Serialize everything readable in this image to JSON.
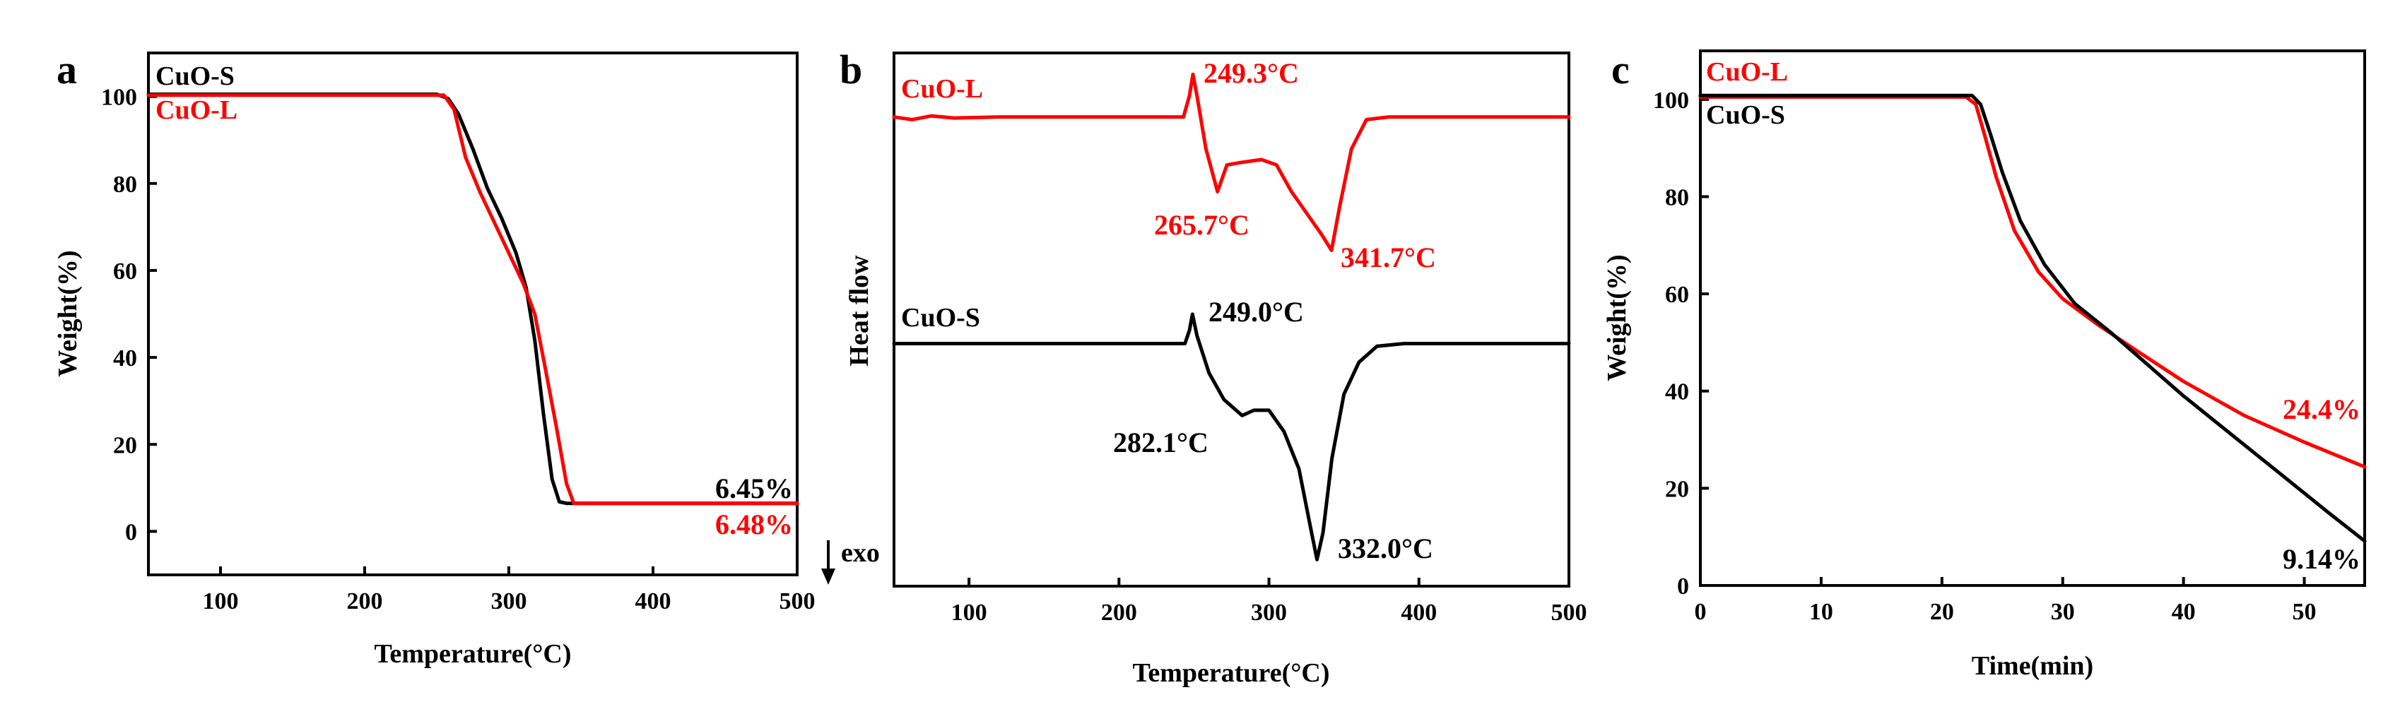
{
  "colors": {
    "CuO-S": "#000000",
    "CuO-L": "#ff0000"
  },
  "chart_data": [
    {
      "panel": "a",
      "type": "line",
      "xlabel": "Temperature(°C)",
      "ylabel": "Weight(%)",
      "xlim": [
        50,
        500
      ],
      "ylim": [
        -10,
        110
      ],
      "xticks": [
        100,
        200,
        300,
        400,
        500
      ],
      "yticks": [
        0,
        20,
        40,
        60,
        80,
        100
      ],
      "legend": [
        "CuO-S",
        "CuO-L"
      ],
      "series": [
        {
          "name": "CuO-S",
          "x": [
            50,
            250,
            258,
            265,
            275,
            285,
            295,
            305,
            312,
            318,
            324,
            330,
            335,
            340,
            345,
            500
          ],
          "y": [
            100.5,
            100.5,
            99.5,
            96,
            88,
            79,
            72,
            64,
            56,
            44,
            27,
            12,
            6.8,
            6.45,
            6.45,
            6.45
          ]
        },
        {
          "name": "CuO-L",
          "x": [
            50,
            255,
            262,
            270,
            280,
            290,
            300,
            310,
            318,
            325,
            333,
            340,
            345,
            350,
            500
          ],
          "y": [
            100.3,
            100.3,
            97,
            86,
            78,
            71,
            64,
            57,
            50,
            38,
            24,
            11,
            6.48,
            6.48,
            6.48
          ]
        }
      ],
      "annotations": [
        {
          "text": "6.45%",
          "series": "CuO-S",
          "x": 500,
          "y": 6.45
        },
        {
          "text": "6.48%",
          "series": "CuO-L",
          "x": 500,
          "y": 6.48
        }
      ]
    },
    {
      "panel": "b",
      "type": "line",
      "xlabel": "Temperature(°C)",
      "ylabel": "Heat flow",
      "direction_label": "exo",
      "xlim": [
        50,
        500
      ],
      "ylim": [
        0,
        100
      ],
      "xticks": [
        100,
        200,
        300,
        400,
        500
      ],
      "series": [
        {
          "name": "CuO-L",
          "x": [
            50,
            62,
            75,
            90,
            120,
            243,
            247,
            249.3,
            252,
            258,
            265.7,
            272,
            282,
            295,
            305,
            315,
            325,
            335,
            341.7,
            347,
            355,
            365,
            380,
            420,
            500
          ],
          "y": [
            88,
            87.5,
            88.2,
            87.8,
            88,
            88,
            92,
            96,
            92,
            82,
            74,
            79,
            79.5,
            80,
            79,
            74,
            70,
            66,
            63,
            71,
            82,
            87.5,
            88,
            88,
            88
          ]
        },
        {
          "name": "CuO-S",
          "x": [
            50,
            100,
            200,
            244,
            247,
            249,
            252,
            260,
            270,
            282.1,
            290,
            300,
            310,
            320,
            327,
            332,
            336,
            342,
            350,
            360,
            372,
            390,
            430,
            500
          ],
          "y": [
            45.5,
            45.5,
            45.5,
            45.5,
            48,
            51,
            47,
            40,
            35,
            32,
            33,
            33,
            29,
            22,
            12,
            5,
            10,
            24,
            36,
            42,
            45,
            45.5,
            45.5,
            45.5
          ]
        }
      ],
      "annotations": [
        {
          "text": "249.3°C",
          "series": "CuO-L",
          "x": 249.3,
          "y": 96
        },
        {
          "text": "265.7°C",
          "series": "CuO-L",
          "x": 265.7,
          "y": 74
        },
        {
          "text": "341.7°C",
          "series": "CuO-L",
          "x": 341.7,
          "y": 63
        },
        {
          "text": "249.0°C",
          "series": "CuO-S",
          "x": 249,
          "y": 51
        },
        {
          "text": "282.1°C",
          "series": "CuO-S",
          "x": 282.1,
          "y": 32
        },
        {
          "text": "332.0°C",
          "series": "CuO-S",
          "x": 332,
          "y": 5
        }
      ]
    },
    {
      "panel": "c",
      "type": "line",
      "xlabel": "Time(min)",
      "ylabel": "Weight(%)",
      "xlim": [
        0,
        55
      ],
      "ylim": [
        0,
        110
      ],
      "xticks": [
        0,
        10,
        20,
        30,
        40,
        50
      ],
      "yticks": [
        0,
        20,
        40,
        60,
        80,
        100
      ],
      "legend": [
        "CuO-L",
        "CuO-S"
      ],
      "series": [
        {
          "name": "CuO-L",
          "x": [
            0,
            22,
            22.8,
            23.5,
            24.5,
            26,
            28,
            30,
            33,
            36,
            40,
            45,
            50,
            55
          ],
          "y": [
            100.5,
            100.5,
            99,
            93,
            84,
            73,
            64.5,
            59,
            53.5,
            48.5,
            42,
            35,
            29.5,
            24.4
          ]
        },
        {
          "name": "CuO-S",
          "x": [
            0,
            22.5,
            23.2,
            24,
            25,
            26.5,
            28.5,
            31,
            34,
            37,
            40,
            44,
            48,
            52,
            55
          ],
          "y": [
            100.8,
            100.8,
            99,
            93,
            85,
            75,
            66,
            58,
            52,
            45.5,
            39,
            31,
            23,
            15,
            9.14
          ]
        }
      ],
      "annotations": [
        {
          "text": "24.4%",
          "series": "CuO-L",
          "x": 55,
          "y": 24.4
        },
        {
          "text": "9.14%",
          "series": "CuO-S",
          "x": 55,
          "y": 9.14
        }
      ]
    }
  ]
}
